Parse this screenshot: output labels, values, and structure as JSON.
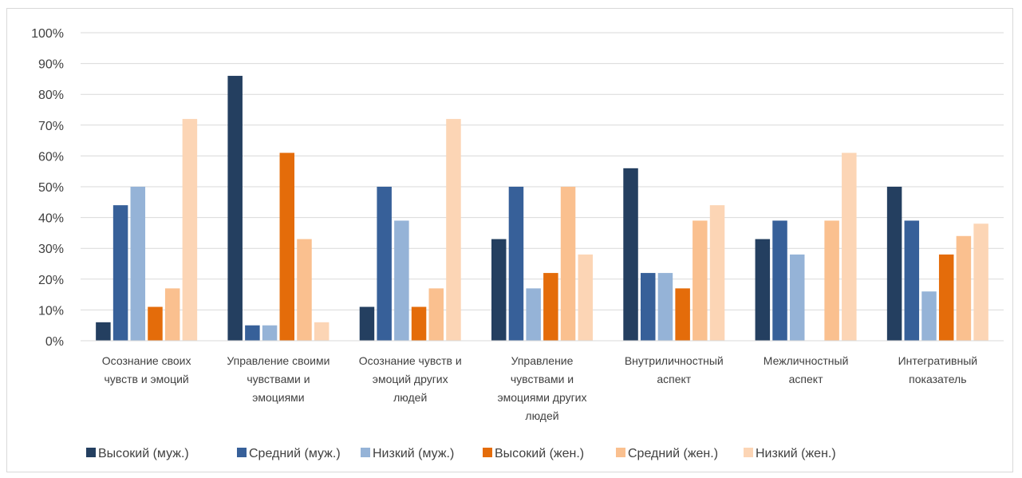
{
  "chart_data": {
    "type": "bar",
    "title": "",
    "xlabel": "",
    "ylabel": "",
    "ylim": [
      0,
      100
    ],
    "y_ticks": [
      "0%",
      "10%",
      "20%",
      "30%",
      "40%",
      "50%",
      "60%",
      "70%",
      "80%",
      "90%",
      "100%"
    ],
    "grid": true,
    "legend_position": "bottom",
    "categories": [
      [
        "Осознание своих",
        "чувств и эмоций"
      ],
      [
        "Управление своими",
        "чувствами и",
        "эмоциями"
      ],
      [
        "Осознание чувств и",
        "эмоций других",
        "людей"
      ],
      [
        "Управление",
        "чувствами и",
        "эмоциями других",
        "людей"
      ],
      [
        "Внутриличностный",
        "аспект"
      ],
      [
        "Межличностный",
        "аспект"
      ],
      [
        "Интегративный",
        "показатель"
      ]
    ],
    "series": [
      {
        "name": "Высокий (муж.)",
        "color": "#243f60",
        "values": [
          6,
          86,
          11,
          33,
          56,
          33,
          50
        ]
      },
      {
        "name": "Средний (муж.)",
        "color": "#376099",
        "values": [
          44,
          5,
          50,
          50,
          22,
          39,
          39
        ]
      },
      {
        "name": "Низкий (муж.)",
        "color": "#95b3d7",
        "values": [
          50,
          5,
          39,
          17,
          22,
          28,
          16
        ]
      },
      {
        "name": "Высокий (жен.)",
        "color": "#e46c0a",
        "values": [
          11,
          61,
          11,
          22,
          17,
          0,
          28
        ]
      },
      {
        "name": "Средний (жен.)",
        "color": "#fac08f",
        "values": [
          17,
          33,
          17,
          50,
          39,
          39,
          34
        ]
      },
      {
        "name": "Низкий (жен.)",
        "color": "#fcd5b5",
        "values": [
          72,
          6,
          72,
          28,
          44,
          61,
          38
        ]
      }
    ]
  }
}
